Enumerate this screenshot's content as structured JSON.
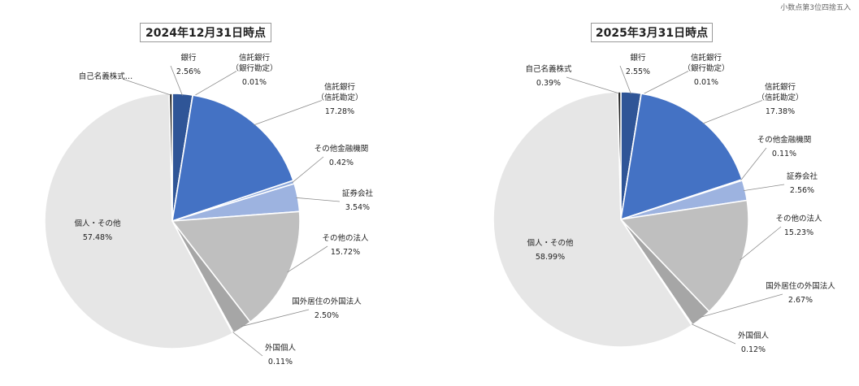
{
  "note": "小数点第3位四捨五入",
  "colors": {
    "bank": "#2f5597",
    "trust_bank_own": "#2e59a8",
    "trust_bank_trust": "#4472c4",
    "other_fin": "#8faadc",
    "securities": "#9db3e0",
    "other_corp": "#bfbfbf",
    "foreign_corp": "#a6a6a6",
    "foreign_ind": "#d0d0d0",
    "individuals": "#e6e6e6",
    "treasury": "#262626"
  },
  "chart_data": [
    {
      "type": "pie",
      "title": "2024年12月31日時点",
      "slices": [
        {
          "label_lines": [
            "銀行"
          ],
          "value_text": "2.56%",
          "value": 2.56,
          "color_key": "bank"
        },
        {
          "label_lines": [
            "信託銀行",
            "（銀行勘定）"
          ],
          "value_text": "0.01%",
          "value": 0.01,
          "color_key": "trust_bank_own"
        },
        {
          "label_lines": [
            "信託銀行",
            "（信託勘定）"
          ],
          "value_text": "17.28%",
          "value": 17.28,
          "color_key": "trust_bank_trust"
        },
        {
          "label_lines": [
            "その他金融機関"
          ],
          "value_text": "0.42%",
          "value": 0.42,
          "color_key": "other_fin"
        },
        {
          "label_lines": [
            "証券会社"
          ],
          "value_text": "3.54%",
          "value": 3.54,
          "color_key": "securities"
        },
        {
          "label_lines": [
            "その他の法人"
          ],
          "value_text": "15.72%",
          "value": 15.72,
          "color_key": "other_corp"
        },
        {
          "label_lines": [
            "国外居住の外国法人"
          ],
          "value_text": "2.50%",
          "value": 2.5,
          "color_key": "foreign_corp"
        },
        {
          "label_lines": [
            "外国個人"
          ],
          "value_text": "0.11%",
          "value": 0.11,
          "color_key": "foreign_ind"
        },
        {
          "label_lines": [
            "個人・その他"
          ],
          "value_text": "57.48%",
          "value": 57.48,
          "color_key": "individuals"
        },
        {
          "label_lines": [
            "自己名義株式…"
          ],
          "value_text": "",
          "value": 0.38,
          "color_key": "treasury"
        }
      ]
    },
    {
      "type": "pie",
      "title": "2025年3月31日時点",
      "slices": [
        {
          "label_lines": [
            "銀行"
          ],
          "value_text": "2.55%",
          "value": 2.55,
          "color_key": "bank"
        },
        {
          "label_lines": [
            "信託銀行",
            "（銀行勘定）"
          ],
          "value_text": "0.01%",
          "value": 0.01,
          "color_key": "trust_bank_own"
        },
        {
          "label_lines": [
            "信託銀行",
            "（信託勘定）"
          ],
          "value_text": "17.38%",
          "value": 17.38,
          "color_key": "trust_bank_trust"
        },
        {
          "label_lines": [
            "その他金融機関"
          ],
          "value_text": "0.11%",
          "value": 0.11,
          "color_key": "other_fin"
        },
        {
          "label_lines": [
            "証券会社"
          ],
          "value_text": "2.56%",
          "value": 2.56,
          "color_key": "securities"
        },
        {
          "label_lines": [
            "その他の法人"
          ],
          "value_text": "15.23%",
          "value": 15.23,
          "color_key": "other_corp"
        },
        {
          "label_lines": [
            "国外居住の外国法人"
          ],
          "value_text": "2.67%",
          "value": 2.67,
          "color_key": "foreign_corp"
        },
        {
          "label_lines": [
            "外国個人"
          ],
          "value_text": "0.12%",
          "value": 0.12,
          "color_key": "foreign_ind"
        },
        {
          "label_lines": [
            "個人・その他"
          ],
          "value_text": "58.99%",
          "value": 58.99,
          "color_key": "individuals"
        },
        {
          "label_lines": [
            "自己名義株式"
          ],
          "value_text": "0.39%",
          "value": 0.39,
          "color_key": "treasury"
        }
      ]
    }
  ]
}
